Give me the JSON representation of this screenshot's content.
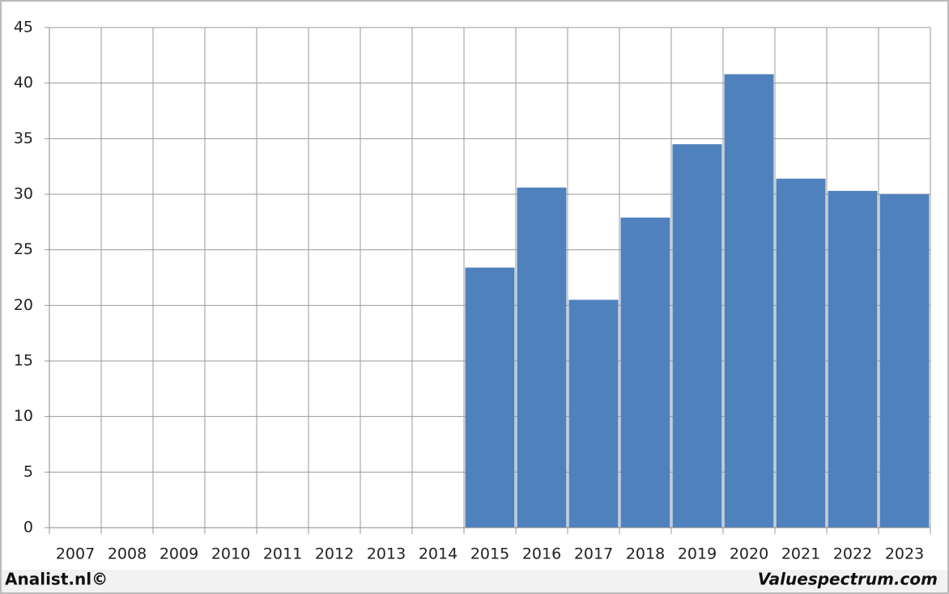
{
  "chart_data": {
    "type": "bar",
    "categories": [
      "2007",
      "2008",
      "2009",
      "2010",
      "2011",
      "2012",
      "2013",
      "2014",
      "2015",
      "2016",
      "2017",
      "2018",
      "2019",
      "2020",
      "2021",
      "2022",
      "2023"
    ],
    "values": [
      null,
      null,
      null,
      null,
      null,
      null,
      null,
      null,
      23.4,
      30.6,
      20.5,
      27.9,
      34.5,
      40.8,
      31.4,
      30.3,
      30.0
    ],
    "color": "#4f81bd",
    "ylim": [
      0,
      45
    ],
    "yticks": [
      0,
      5,
      10,
      15,
      20,
      25,
      30,
      35,
      40,
      45
    ],
    "grid": true
  },
  "footer": {
    "left": "Analist.nl©",
    "right": "Valuespectrum.com"
  }
}
